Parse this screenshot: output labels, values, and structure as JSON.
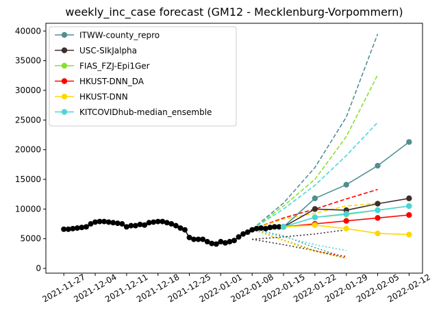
{
  "chart_data": {
    "type": "line",
    "title": "weekly_inc_case forecast (GM12 - Mecklenburg-Vorpommern)",
    "xlim": [
      "2021-11-23",
      "2022-02-15"
    ],
    "xticks": [
      "2021-11-27",
      "2021-12-04",
      "2021-12-11",
      "2021-12-18",
      "2021-12-25",
      "2022-01-01",
      "2022-01-08",
      "2022-01-15",
      "2022-01-22",
      "2022-01-29",
      "2022-02-05",
      "2022-02-12"
    ],
    "ylim": [
      -800,
      41300
    ],
    "yticks": [
      0,
      5000,
      10000,
      15000,
      20000,
      25000,
      30000,
      35000,
      40000
    ],
    "legend": "upper left",
    "observed": {
      "color": "#000000",
      "x": [
        "2021-11-27",
        "2021-11-28",
        "2021-11-29",
        "2021-11-30",
        "2021-12-01",
        "2021-12-02",
        "2021-12-03",
        "2021-12-04",
        "2021-12-05",
        "2021-12-06",
        "2021-12-07",
        "2021-12-08",
        "2021-12-09",
        "2021-12-10",
        "2021-12-11",
        "2021-12-12",
        "2021-12-13",
        "2021-12-14",
        "2021-12-15",
        "2021-12-16",
        "2021-12-17",
        "2021-12-18",
        "2021-12-19",
        "2021-12-20",
        "2021-12-21",
        "2021-12-22",
        "2021-12-23",
        "2021-12-24",
        "2021-12-25",
        "2021-12-26",
        "2021-12-27",
        "2021-12-28",
        "2021-12-29",
        "2021-12-30",
        "2021-12-31",
        "2022-01-01",
        "2022-01-02",
        "2022-01-03",
        "2022-01-04",
        "2022-01-05",
        "2022-01-06",
        "2022-01-07",
        "2022-01-08",
        "2022-01-09",
        "2022-01-10",
        "2022-01-11",
        "2022-01-12",
        "2022-01-13",
        "2022-01-14"
      ],
      "values": [
        6600,
        6600,
        6700,
        6800,
        6900,
        7000,
        7500,
        7800,
        7900,
        7900,
        7800,
        7700,
        7600,
        7500,
        7000,
        7200,
        7200,
        7400,
        7300,
        7700,
        7800,
        7900,
        7900,
        7700,
        7500,
        7200,
        6800,
        6500,
        5200,
        4900,
        4900,
        4900,
        4500,
        4200,
        4100,
        4500,
        4300,
        4500,
        4700,
        5300,
        5800,
        6100,
        6500,
        6700,
        6800,
        6700,
        6900,
        7000,
        7000
      ]
    },
    "x": [
      "2022-01-15",
      "2022-01-22",
      "2022-01-29",
      "2022-02-05",
      "2022-02-12"
    ],
    "band_x": [
      "2022-01-08",
      "2022-01-15",
      "2022-01-22",
      "2022-01-29",
      "2022-02-05"
    ],
    "series": [
      {
        "name": "ITWW-county_repro",
        "color": "#4f8f94",
        "values": [
          7000,
          11800,
          14100,
          17300,
          21300
        ],
        "upper": [
          6600,
          11000,
          17000,
          25500,
          39500
        ],
        "lower": [
          6600,
          5500,
          3500,
          1800,
          null
        ],
        "upper_dash": "6,3"
      },
      {
        "name": "USC-SIkJalpha",
        "color": "#3b2f2a",
        "values": [
          7000,
          10000,
          9800,
          10900,
          11800
        ],
        "upper": [
          4900,
          5300,
          5800,
          6500,
          null
        ],
        "lower": [
          4900,
          4000,
          3000,
          1700,
          null
        ],
        "upper_dash": "2,3"
      },
      {
        "name": "FIAS_FZJ-Epi1Ger",
        "color": "#86e02d",
        "values": [
          7000,
          8600,
          9100,
          9800,
          10500
        ],
        "upper": [
          6600,
          10500,
          15000,
          22200,
          32600
        ],
        "lower": [
          6600,
          4800,
          3000,
          1900,
          null
        ],
        "upper_dash": "6,3"
      },
      {
        "name": "HKUST-DNN_DA",
        "color": "#ff0000",
        "values": [
          7000,
          7500,
          8000,
          8500,
          9000
        ],
        "upper": [
          6600,
          8500,
          10000,
          11700,
          13300
        ],
        "lower": [
          6600,
          4700,
          2900,
          2000,
          null
        ],
        "upper_dash": "6,3"
      },
      {
        "name": "HKUST-DNN",
        "color": "#ffd700",
        "values": [
          7000,
          7300,
          6700,
          5900,
          5700
        ],
        "upper": [
          6600,
          8300,
          9300,
          10500,
          11000
        ],
        "lower": [
          6600,
          4700,
          2800,
          1700,
          null
        ],
        "upper_dash": "6,3"
      },
      {
        "name": "KITCOVIDhub-median_ensemble",
        "color": "#48d6d8",
        "values": [
          7000,
          8600,
          9200,
          9800,
          10500
        ],
        "upper": [
          6600,
          10000,
          14000,
          19000,
          24600
        ],
        "lower": [
          6600,
          5300,
          4000,
          3000,
          null
        ],
        "upper_dash": "6,3"
      }
    ]
  }
}
